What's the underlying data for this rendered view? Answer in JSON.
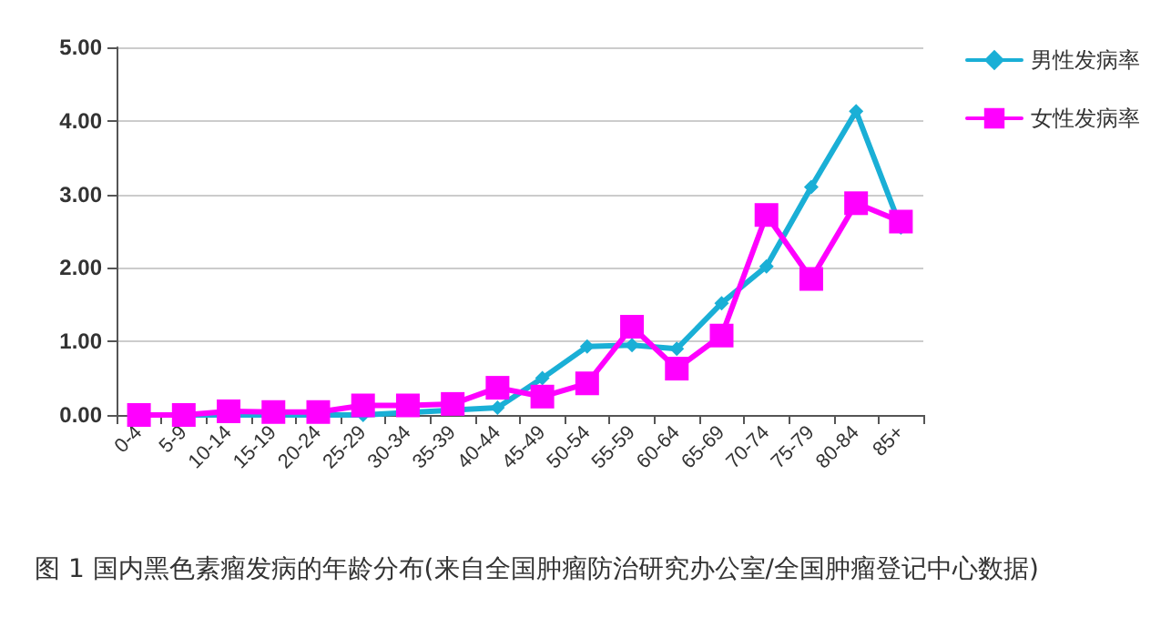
{
  "chart_data": {
    "type": "line",
    "title": "图 1 国内黑色素瘤发病的年龄分布(来自全国肿瘤防治研究办公室/全国肿瘤登记中心数据)",
    "categories": [
      "0-4",
      "5-9",
      "10-14",
      "15-19",
      "20-24",
      "25-29",
      "30-34",
      "35-39",
      "40-44",
      "45-49",
      "50-54",
      "55-59",
      "60-64",
      "65-69",
      "70-74",
      "75-79",
      "80-84",
      "85+"
    ],
    "series": [
      {
        "name": "男性发病率",
        "color": "#1aafd6",
        "marker": "diamond",
        "values": [
          0.0,
          0.0,
          null,
          null,
          null,
          0.0,
          null,
          null,
          0.1,
          0.5,
          0.93,
          0.95,
          0.9,
          1.52,
          2.02,
          3.1,
          4.13,
          2.55
        ]
      },
      {
        "name": "女性发病率",
        "color": "#ff00ff",
        "marker": "square",
        "values": [
          0.0,
          0.0,
          0.05,
          0.04,
          0.04,
          0.13,
          0.13,
          0.15,
          0.37,
          0.25,
          0.43,
          1.2,
          0.63,
          1.08,
          2.72,
          1.85,
          2.88,
          2.63
        ]
      }
    ],
    "ylim": [
      0,
      5
    ],
    "yticks": [
      {
        "value": 0,
        "label": "0.00"
      },
      {
        "value": 1,
        "label": "1.00"
      },
      {
        "value": 2,
        "label": "2.00"
      },
      {
        "value": 3,
        "label": "3.00"
      },
      {
        "value": 4,
        "label": "4.00"
      },
      {
        "value": 5,
        "label": "5.00"
      }
    ],
    "grid": "y",
    "legend": "top right",
    "line_style": "solid"
  }
}
